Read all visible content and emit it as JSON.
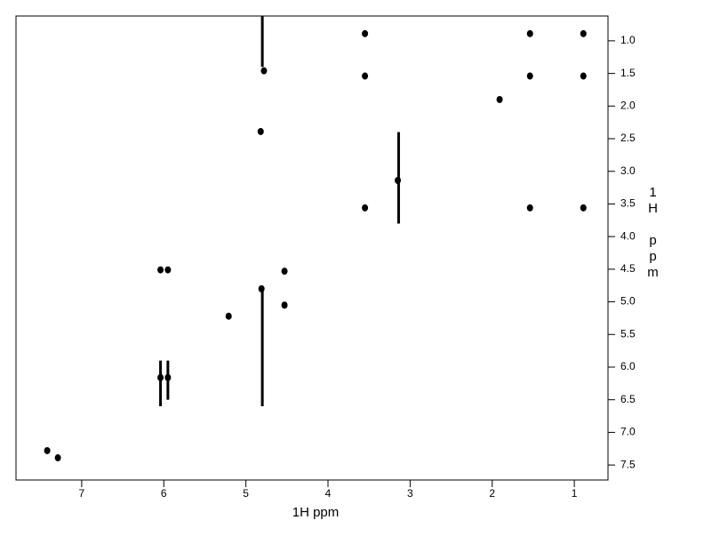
{
  "chart_data": {
    "type": "scatter",
    "x_label": "1H ppm",
    "y_label": "1H ppm",
    "xlim": [
      7.8,
      0.59
    ],
    "ylim": [
      0.62,
      7.73
    ],
    "xticks": [
      7,
      6,
      5,
      4,
      3,
      2,
      1
    ],
    "yticks": [
      {
        "value": 1,
        "label": "1.0"
      },
      1.5,
      {
        "value": 2,
        "label": "2.0"
      },
      2.5,
      {
        "value": 3,
        "label": "3.0"
      },
      3.5,
      {
        "value": 4,
        "label": "4.0"
      },
      4.5,
      {
        "value": 5,
        "label": "5.0"
      },
      5.5,
      {
        "value": 6,
        "label": "6.0"
      },
      6.5,
      {
        "value": 7,
        "label": "7.0"
      },
      7.5
    ],
    "color": "#000000",
    "series": [
      {
        "x": [
          0.89,
          1.54,
          3.55,
          1.54,
          0.89,
          3.55,
          1.91,
          4.78,
          4.82,
          3.15,
          3.55,
          1.54,
          0.89,
          6.04,
          5.95,
          4.53,
          4.81,
          5.21,
          4.53,
          6.04,
          5.95,
          7.29,
          7.42
        ],
        "values": [
          0.89,
          0.89,
          0.89,
          1.54,
          1.54,
          1.54,
          1.9,
          1.46,
          2.39,
          3.14,
          3.56,
          3.56,
          3.56,
          4.51,
          4.51,
          4.53,
          4.8,
          5.22,
          5.05,
          6.16,
          6.16,
          7.39,
          7.28
        ]
      }
    ],
    "ridges": [
      {
        "x": 4.8,
        "y": [
          4.8,
          6.6
        ]
      },
      {
        "x": 4.8,
        "y": [
          0.62,
          1.4
        ]
      },
      {
        "x": 6.04,
        "y": [
          5.9,
          6.6
        ]
      },
      {
        "x": 5.95,
        "y": [
          5.9,
          6.5
        ]
      },
      {
        "x": 3.14,
        "y": [
          2.4,
          3.8
        ]
      }
    ]
  }
}
